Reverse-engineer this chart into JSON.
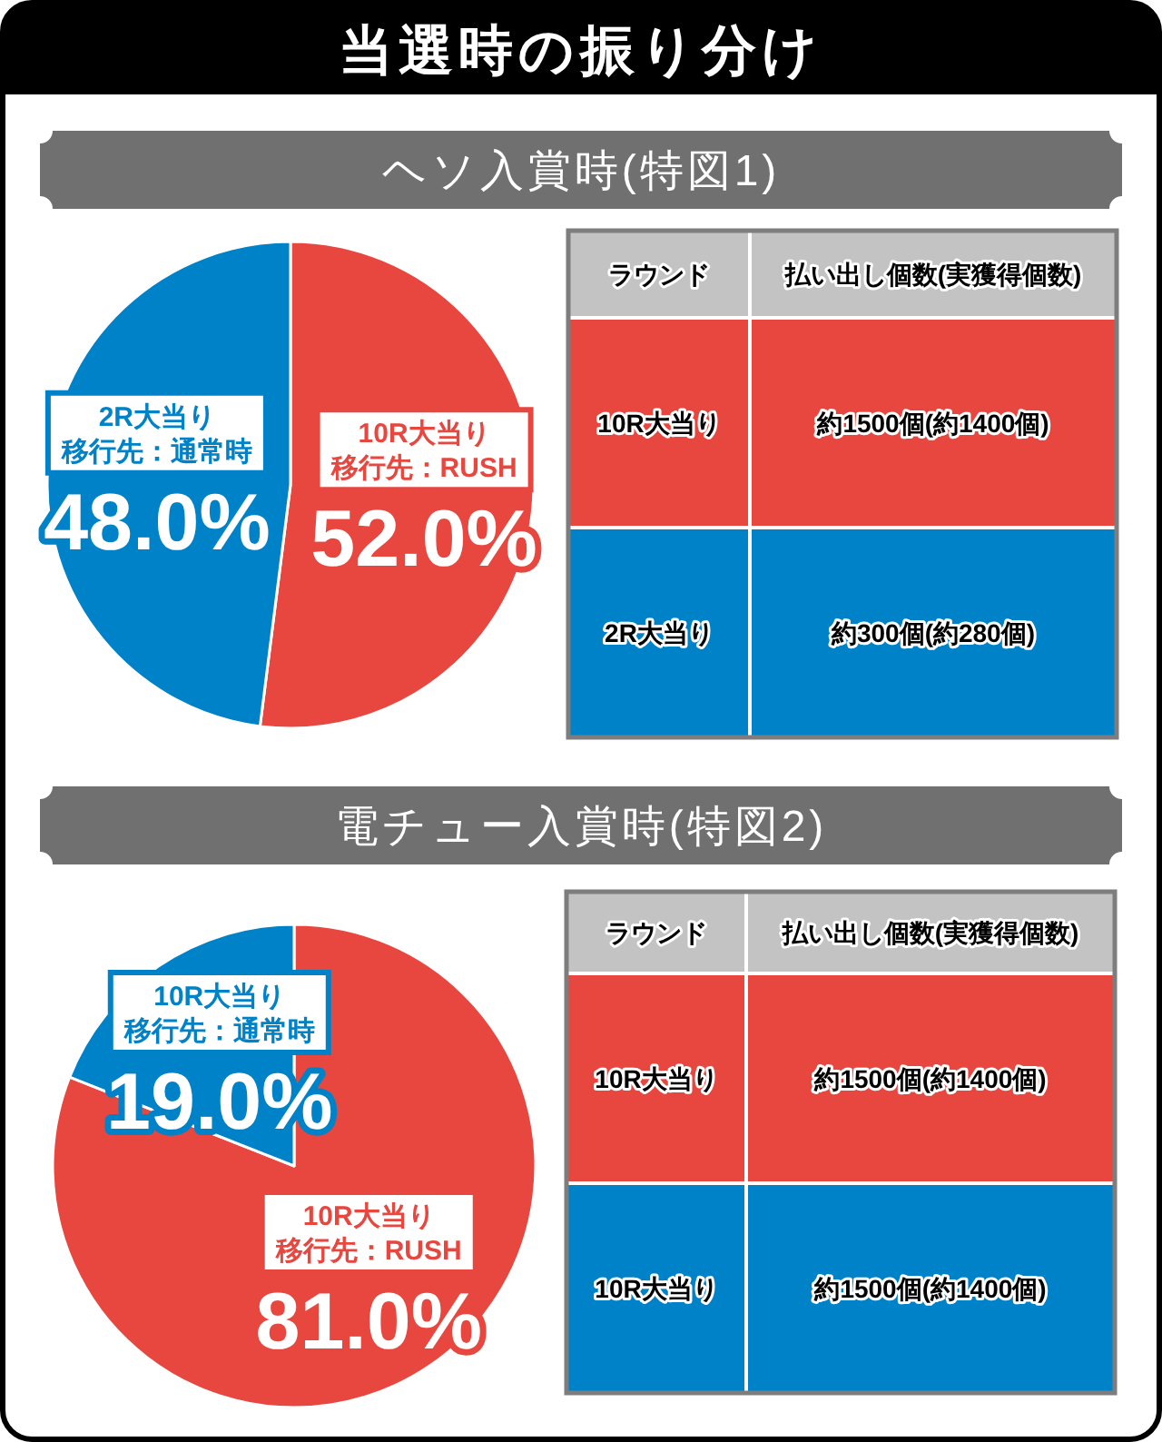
{
  "chart_data": [
    {
      "type": "pie",
      "title": "当選時の振り分け",
      "subtitle": "ヘソ入賞時(特図1)",
      "categories": [
        "10R大当り移行先：RUSH",
        "2R大当り移行先：通常時"
      ],
      "values": [
        52.0,
        48.0
      ],
      "colors": [
        "#e8473f",
        "#0082c8"
      ],
      "value_labels": [
        "52.0%",
        "48.0%"
      ]
    },
    {
      "type": "other",
      "annotations": [
        "ラウンド",
        "払い出し個数(実獲得個数)",
        "10R大当り",
        "約1500個(約1400個)",
        "2R大当り",
        "約300個(約280個)"
      ],
      "colors": [
        "#c3c3c3",
        "#e8473f",
        "#0082c8"
      ]
    },
    {
      "type": "pie",
      "title": "電チュー入賞時(特図2)",
      "categories": [
        "10R大当り移行先：RUSH",
        "10R大当り移行先：通常時"
      ],
      "values": [
        81.0,
        19.0
      ],
      "colors": [
        "#e8473f",
        "#0082c8"
      ],
      "value_labels": [
        "81.0%",
        "19.0%"
      ]
    },
    {
      "type": "other",
      "annotations": [
        "ラウンド",
        "払い出し個数(実獲得個数)",
        "10R大当り",
        "約1500個(約1400個)",
        "10R大当り",
        "約1500個(約1400個)"
      ],
      "colors": [
        "#c3c3c3",
        "#e8473f",
        "#0082c8"
      ]
    }
  ]
}
